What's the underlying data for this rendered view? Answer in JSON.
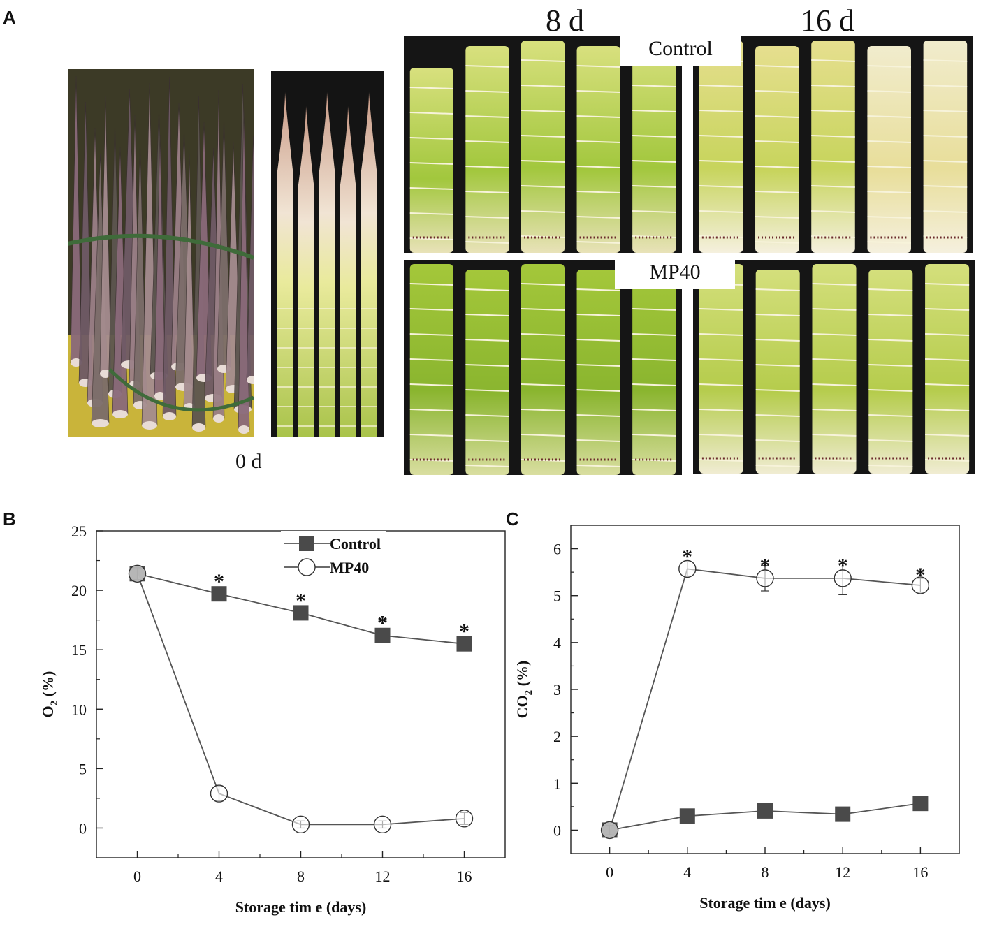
{
  "panels": {
    "a": "A",
    "b": "B",
    "c": "C"
  },
  "photo_labels": {
    "day0": "0 d",
    "day8": "8 d",
    "day16": "16 d",
    "control": "Control",
    "mp40": "MP40"
  },
  "colors": {
    "control_marker": "#4a4a4a",
    "line": "#555555",
    "shoot_green": "#9bc23a",
    "shoot_yellow": "#e6ea9a",
    "sheath_purple": "#8a6a7a",
    "photo_bg": "#151515"
  },
  "chart_data": [
    {
      "type": "line",
      "panel": "B",
      "xlabel": "Storage tim e (days)",
      "ylabel": "O2 (%)",
      "x": [
        0,
        4,
        8,
        12,
        16
      ],
      "xticks": [
        "0",
        "4",
        "8",
        "12",
        "16"
      ],
      "yticks": [
        "0",
        "5",
        "10",
        "15",
        "20",
        "25"
      ],
      "xlim": [
        -2,
        18
      ],
      "ylim": [
        -2.5,
        25
      ],
      "legend": "top-center",
      "series": [
        {
          "name": "Control",
          "marker": "filled-square",
          "values": [
            21.4,
            19.7,
            18.1,
            16.2,
            15.5
          ],
          "err": [
            0.5,
            0.3,
            0.3,
            0.3,
            0.3
          ]
        },
        {
          "name": "MP40",
          "marker": "open-circle",
          "values": [
            21.4,
            2.9,
            0.3,
            0.3,
            0.8
          ],
          "err": [
            0.5,
            0.6,
            0.3,
            0.3,
            0.5
          ]
        }
      ],
      "annotations": [
        {
          "x": 4,
          "y": 21.0,
          "text": "*"
        },
        {
          "x": 8,
          "y": 19.4,
          "text": "*"
        },
        {
          "x": 12,
          "y": 17.5,
          "text": "*"
        },
        {
          "x": 16,
          "y": 16.8,
          "text": "*"
        }
      ]
    },
    {
      "type": "line",
      "panel": "C",
      "xlabel": "Storage tim e (days)",
      "ylabel": "CO2 (%)",
      "x": [
        0,
        4,
        8,
        12,
        16
      ],
      "xticks": [
        "0",
        "4",
        "8",
        "12",
        "16"
      ],
      "yticks": [
        "0",
        "1",
        "2",
        "3",
        "4",
        "5",
        "6"
      ],
      "xlim": [
        -2,
        18
      ],
      "ylim": [
        -0.5,
        6.5
      ],
      "legend": "none",
      "series": [
        {
          "name": "Control",
          "marker": "filled-square",
          "values": [
            0.0,
            0.3,
            0.41,
            0.34,
            0.57
          ],
          "err": [
            0.1,
            0.05,
            0.05,
            0.05,
            0.05
          ]
        },
        {
          "name": "MP40",
          "marker": "open-circle",
          "values": [
            0.0,
            5.57,
            5.37,
            5.37,
            5.22
          ],
          "err": [
            0.1,
            0.15,
            0.27,
            0.35,
            0.15
          ]
        }
      ],
      "annotations": [
        {
          "x": 4,
          "y": 5.9,
          "text": "*"
        },
        {
          "x": 8,
          "y": 5.7,
          "text": "*"
        },
        {
          "x": 12,
          "y": 5.7,
          "text": "*"
        },
        {
          "x": 16,
          "y": 5.5,
          "text": "*"
        }
      ]
    }
  ]
}
